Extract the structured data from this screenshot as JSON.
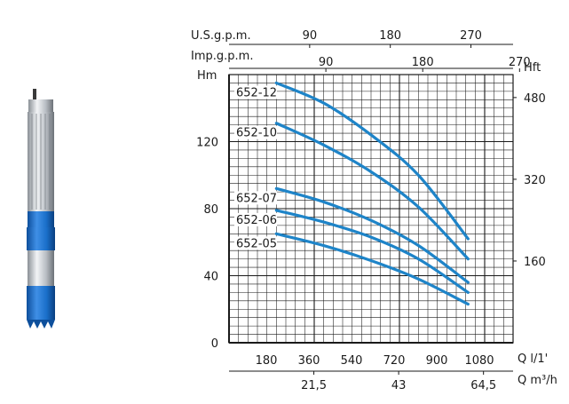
{
  "chart_data": {
    "type": "line",
    "axes": {
      "y_left_label": "Hm",
      "y_right_label": "Hft",
      "x_bottom1_label": "Q l/1'",
      "x_bottom2_label": "Q m³/h",
      "x_top1_label": "U.S.g.p.m.",
      "x_top2_label": "Imp.g.p.m.",
      "xlim": [
        0,
        1200
      ],
      "ylim": [
        0,
        160
      ],
      "y_left_ticks": [
        "0",
        "40",
        "80",
        "120"
      ],
      "y_right_ticks": [
        "160",
        "320",
        "480"
      ],
      "x_bottom1_ticks": [
        "180",
        "360",
        "540",
        "720",
        "900",
        "1080"
      ],
      "x_bottom2_ticks": [
        "21,5",
        "43",
        "64,5"
      ],
      "x_top1_ticks": [
        "90",
        "180",
        "270"
      ],
      "x_top2_ticks": [
        "90",
        "180",
        "270"
      ],
      "grid": true
    },
    "series": [
      {
        "name": "652-12",
        "x": [
          200,
          400,
          600,
          800,
          1010
        ],
        "y": [
          155,
          143,
          124,
          100,
          62
        ]
      },
      {
        "name": "652-10",
        "x": [
          200,
          400,
          600,
          800,
          1010
        ],
        "y": [
          131,
          118,
          102,
          81,
          50
        ]
      },
      {
        "name": "652-07",
        "x": [
          200,
          400,
          600,
          800,
          1010
        ],
        "y": [
          92,
          84,
          73,
          58,
          36
        ]
      },
      {
        "name": "652-06",
        "x": [
          200,
          400,
          600,
          800,
          1010
        ],
        "y": [
          79,
          72,
          63,
          50,
          30
        ]
      },
      {
        "name": "652-05",
        "x": [
          200,
          400,
          600,
          800,
          1010
        ],
        "y": [
          65,
          58,
          49,
          38,
          23
        ]
      }
    ]
  },
  "colors": {
    "curve": "#1e84c8",
    "pump_blue": "#1a6fc9",
    "pump_steel": "#c8ccd2"
  },
  "icons": {
    "pump": "submersible-pump-icon"
  }
}
